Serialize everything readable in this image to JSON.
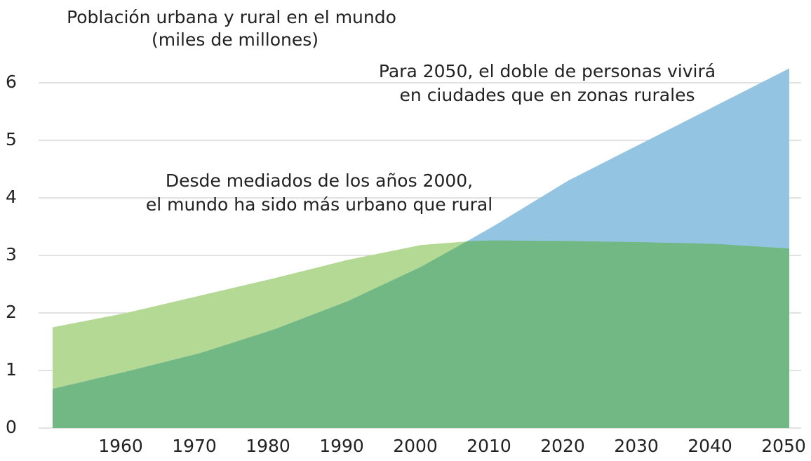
{
  "chart_data": {
    "type": "area",
    "title": "Población urbana y rural en el mundo",
    "subtitle": "(miles de millones)",
    "annotations": [
      {
        "lines": [
          "Para 2050, el doble de personas vivirá",
          "en ciudades que en zonas rurales"
        ]
      },
      {
        "lines": [
          "Desde mediados de los años 2000,",
          "el mundo ha sido más urbano que rural"
        ]
      }
    ],
    "x": [
      1950,
      1960,
      1970,
      1980,
      1990,
      2000,
      2007,
      2010,
      2020,
      2030,
      2040,
      2050
    ],
    "series": [
      {
        "color": "#b3d994",
        "values": [
          1.75,
          2.0,
          2.3,
          2.6,
          2.92,
          3.18,
          3.25,
          3.26,
          3.25,
          3.23,
          3.2,
          3.12
        ]
      },
      {
        "color": "#93c4e2",
        "values": [
          0.68,
          0.98,
          1.3,
          1.71,
          2.2,
          2.8,
          3.3,
          3.52,
          4.3,
          4.95,
          5.6,
          6.25
        ]
      }
    ],
    "overlap_color": "#72b884",
    "xlim": [
      1950,
      2050
    ],
    "xticks": [
      1960,
      1970,
      1980,
      1990,
      2000,
      2010,
      2020,
      2030,
      2040,
      2050
    ],
    "ylim": [
      0,
      6
    ],
    "yticks": [
      0,
      1,
      2,
      3,
      4,
      5,
      6
    ],
    "grid": true
  }
}
